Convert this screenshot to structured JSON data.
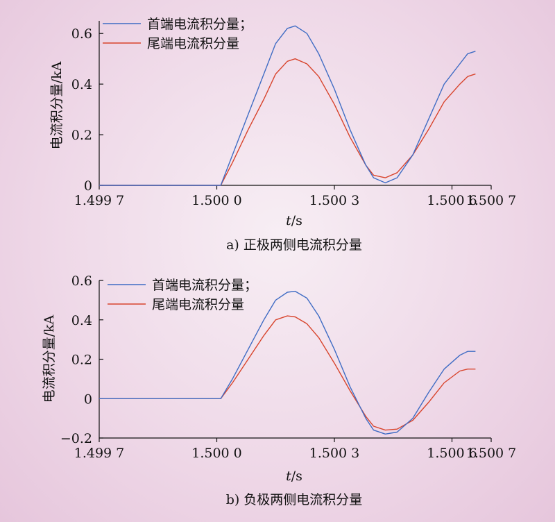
{
  "colors": {
    "series1": "#3f6cc4",
    "series2": "#d8442c",
    "axis": "#111111"
  },
  "chart_data": [
    {
      "type": "line",
      "caption": "a) 正极两侧电流积分量",
      "xlabel_italic": "t",
      "xlabel_unit": "/s",
      "ylabel": "电流积分量/kA",
      "xlim": [
        1.4997,
        1.5007
      ],
      "ylim": [
        0,
        0.65
      ],
      "xticks": [
        1.4997,
        1.5,
        1.5003,
        1.5006,
        1.5007
      ],
      "xtick_labels": [
        "1.499 7",
        "1.500 0",
        "1.500 3",
        "1.500 6",
        "1.500 7"
      ],
      "yticks": [
        0,
        0.2,
        0.4,
        0.6
      ],
      "ytick_labels": [
        "0",
        "0.2",
        "0.4",
        "0.6"
      ],
      "legend": [
        "首端电流积分量；",
        "尾端电流积分量"
      ],
      "legend_position": "top-left",
      "series": [
        {
          "name": "首端电流积分量；",
          "x": [
            1.4997,
            1.50001,
            1.50004,
            1.50008,
            1.50012,
            1.50015,
            1.50018,
            1.5002,
            1.50023,
            1.50026,
            1.5003,
            1.50034,
            1.50038,
            1.5004,
            1.50043,
            1.50046,
            1.5005,
            1.50054,
            1.50058,
            1.50062,
            1.50064,
            1.50066
          ],
          "y": [
            0,
            0,
            0.12,
            0.28,
            0.44,
            0.56,
            0.62,
            0.63,
            0.6,
            0.52,
            0.38,
            0.22,
            0.08,
            0.03,
            0.01,
            0.03,
            0.12,
            0.26,
            0.4,
            0.48,
            0.52,
            0.53
          ]
        },
        {
          "name": "尾端电流积分量",
          "x": [
            1.4997,
            1.50001,
            1.50004,
            1.50008,
            1.50012,
            1.50015,
            1.50018,
            1.5002,
            1.50023,
            1.50026,
            1.5003,
            1.50034,
            1.50038,
            1.5004,
            1.50043,
            1.50046,
            1.5005,
            1.50054,
            1.50058,
            1.50062,
            1.50064,
            1.50066
          ],
          "y": [
            0,
            0,
            0.09,
            0.22,
            0.34,
            0.44,
            0.49,
            0.5,
            0.48,
            0.43,
            0.32,
            0.19,
            0.08,
            0.04,
            0.03,
            0.05,
            0.12,
            0.22,
            0.33,
            0.4,
            0.43,
            0.44
          ]
        }
      ]
    },
    {
      "type": "line",
      "caption": "b) 负极两侧电流积分量",
      "xlabel_italic": "t",
      "xlabel_unit": "/s",
      "ylabel": "电流积分量/kA",
      "xlim": [
        1.4997,
        1.5007
      ],
      "ylim": [
        -0.2,
        0.6
      ],
      "xticks": [
        1.4997,
        1.5,
        1.5003,
        1.5006,
        1.5007
      ],
      "xtick_labels": [
        "1.499 7",
        "1.500 0",
        "1.500 3",
        "1.500 6",
        "1.500 7"
      ],
      "yticks": [
        -0.2,
        0,
        0.2,
        0.4,
        0.6
      ],
      "ytick_labels": [
        "−0.2",
        "0",
        "0.2",
        "0.4",
        "0.6"
      ],
      "legend": [
        "首端电流积分量；",
        "尾端电流积分量"
      ],
      "legend_position": "top-left",
      "series": [
        {
          "name": "首端电流积分量；",
          "x": [
            1.4997,
            1.50001,
            1.50004,
            1.50008,
            1.50012,
            1.50015,
            1.50018,
            1.5002,
            1.50023,
            1.50026,
            1.5003,
            1.50034,
            1.50038,
            1.5004,
            1.50043,
            1.50046,
            1.5005,
            1.50054,
            1.50058,
            1.50062,
            1.50064,
            1.50066
          ],
          "y": [
            0,
            0,
            0.1,
            0.25,
            0.4,
            0.5,
            0.54,
            0.545,
            0.51,
            0.42,
            0.25,
            0.06,
            -0.1,
            -0.16,
            -0.18,
            -0.17,
            -0.1,
            0.03,
            0.15,
            0.22,
            0.24,
            0.24
          ]
        },
        {
          "name": "尾端电流积分量",
          "x": [
            1.4997,
            1.50001,
            1.50004,
            1.50008,
            1.50012,
            1.50015,
            1.50018,
            1.5002,
            1.50023,
            1.50026,
            1.5003,
            1.50034,
            1.50038,
            1.5004,
            1.50043,
            1.50046,
            1.5005,
            1.50054,
            1.50058,
            1.50062,
            1.50064,
            1.50066
          ],
          "y": [
            0,
            0,
            0.08,
            0.2,
            0.32,
            0.4,
            0.42,
            0.415,
            0.38,
            0.31,
            0.18,
            0.04,
            -0.09,
            -0.14,
            -0.16,
            -0.155,
            -0.11,
            -0.02,
            0.08,
            0.14,
            0.15,
            0.15
          ]
        }
      ]
    }
  ]
}
